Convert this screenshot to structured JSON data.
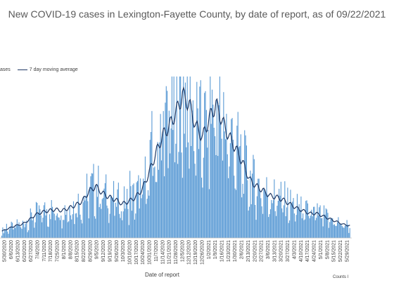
{
  "chart_data": {
    "type": "bar",
    "title": "New COVID-19 cases in Lexington-Fayette County, by date of report, as of 09/22/2021",
    "xlabel": "Date of report",
    "footnote": "Counts l",
    "legend": {
      "position": "top-left",
      "bars_label": "ases",
      "line_label": "7 day moving average"
    },
    "x_tick_labels": [
      "5/30/2020",
      "6/6/2020",
      "6/13/2020",
      "6/20/2020",
      "6/27/2020",
      "7/4/2020",
      "7/11/2020",
      "7/18/2020",
      "7/25/2020",
      "8/1/2020",
      "8/8/2020",
      "8/15/2020",
      "8/22/2020",
      "8/29/2020",
      "9/5/2020",
      "9/12/2020",
      "9/19/2020",
      "9/26/2020",
      "10/3/2020",
      "10/10/2020",
      "10/17/2020",
      "10/24/2020",
      "10/31/2020",
      "11/7/2020",
      "11/14/2020",
      "11/21/2020",
      "11/28/2020",
      "12/5/2020",
      "12/12/2020",
      "12/19/2020",
      "12/26/2020",
      "1/2/2021",
      "1/9/2021",
      "1/16/2021",
      "1/23/2021",
      "1/30/2021",
      "2/6/2021",
      "2/13/2021",
      "2/20/2021",
      "2/27/2021",
      "3/6/2021",
      "3/13/2021",
      "3/20/2021",
      "3/27/2021",
      "4/3/2021",
      "4/10/2021",
      "4/17/2021",
      "4/24/2021",
      "5/1/2021",
      "5/8/2021",
      "5/15/2021",
      "5/22/2021",
      "5/29/2021"
    ],
    "weekly_average_cases": [
      5,
      7,
      9,
      10,
      13,
      17,
      19,
      20,
      21,
      20,
      22,
      24,
      27,
      34,
      38,
      33,
      30,
      28,
      25,
      27,
      30,
      36,
      48,
      62,
      75,
      82,
      92,
      105,
      98,
      82,
      74,
      88,
      98,
      85,
      74,
      65,
      55,
      43,
      38,
      35,
      31,
      30,
      28,
      25,
      22,
      20,
      18,
      18,
      16,
      14,
      12,
      10,
      9
    ],
    "series": [
      {
        "name": "ases",
        "type": "bar",
        "color": "#5b9bd5"
      },
      {
        "name": "7 day moving average",
        "type": "line",
        "color": "#1f3864"
      }
    ],
    "x_range": [
      "5/30/2020",
      "5/29/2021"
    ],
    "grid": false
  }
}
